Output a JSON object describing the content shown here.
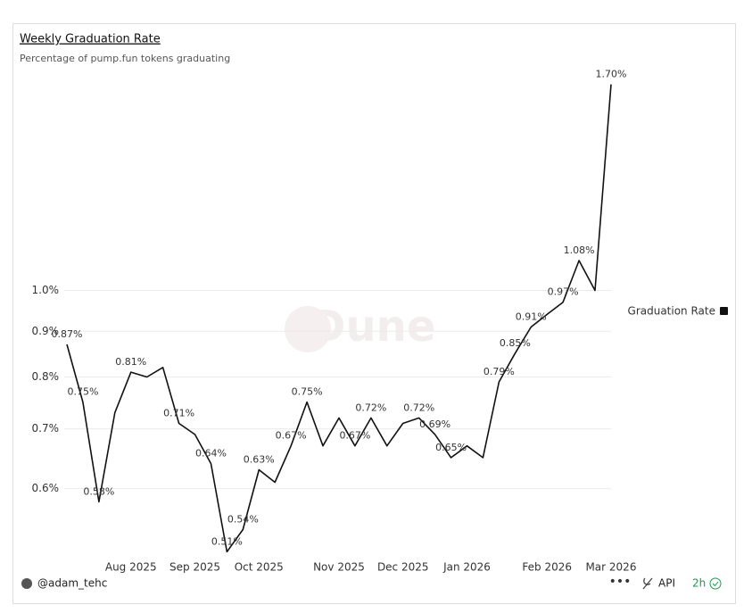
{
  "chart_data": {
    "type": "line",
    "title": "Weekly Graduation Rate",
    "subtitle": "Percentage of pump.fun tokens graduating",
    "watermark": "Dune",
    "categories": [
      null,
      null,
      null,
      null,
      "Aug 2025",
      null,
      null,
      null,
      "Sep 2025",
      null,
      null,
      null,
      "Oct 2025",
      null,
      null,
      null,
      null,
      "Nov 2025",
      null,
      null,
      null,
      "Dec 2025",
      null,
      null,
      null,
      "Jan 2026",
      null,
      null,
      null,
      null,
      "Feb 2026",
      null,
      null,
      null,
      "Mar 2026"
    ],
    "series": [
      {
        "name": "Graduation Rate",
        "color": "#111111",
        "values": [
          0.87,
          0.75,
          0.58,
          0.73,
          0.81,
          0.8,
          0.82,
          0.71,
          0.69,
          0.64,
          0.51,
          0.54,
          0.63,
          0.61,
          0.67,
          0.75,
          0.67,
          0.72,
          0.67,
          0.72,
          0.67,
          0.71,
          0.72,
          0.69,
          0.65,
          0.67,
          0.65,
          0.79,
          0.85,
          0.91,
          0.94,
          0.97,
          1.08,
          1.0,
          1.7
        ],
        "value_labels": [
          "0.87%",
          "0.75%",
          "0.58%",
          null,
          "0.81%",
          null,
          null,
          "0.71%",
          null,
          "0.64%",
          "0.51%",
          "0.54%",
          "0.63%",
          null,
          "0.67%",
          "0.75%",
          null,
          null,
          "0.67%",
          "0.72%",
          null,
          null,
          "0.72%",
          "0.69%",
          "0.65%",
          null,
          null,
          "0.79%",
          "0.85%",
          "0.91%",
          null,
          "0.97%",
          "1.08%",
          null,
          "1.70%"
        ]
      }
    ],
    "ylim": [
      0.5,
      1.75
    ],
    "log_scale": true,
    "grid": true,
    "legend": "right",
    "yticks": [
      {
        "value": 0.6,
        "label": "0.6%"
      },
      {
        "value": 0.7,
        "label": "0.7%"
      },
      {
        "value": 0.8,
        "label": "0.8%"
      },
      {
        "value": 0.9,
        "label": "0.9%"
      },
      {
        "value": 1.0,
        "label": "1.0%"
      }
    ]
  },
  "footer": {
    "author": "@adam_tehc",
    "api": "API",
    "age": "2h"
  }
}
